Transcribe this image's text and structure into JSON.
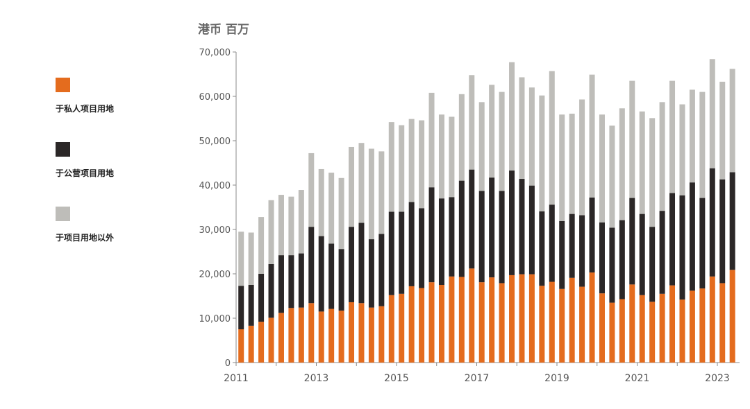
{
  "chart_data": {
    "type": "stacked_bar",
    "title": "港币 百万",
    "categories": [
      "2011",
      null,
      null,
      null,
      null,
      null,
      null,
      null,
      "2013",
      null,
      null,
      null,
      null,
      null,
      null,
      null,
      "2015",
      null,
      null,
      null,
      null,
      null,
      null,
      null,
      "2017",
      null,
      null,
      null,
      null,
      null,
      null,
      null,
      "2019",
      null,
      null,
      null,
      null,
      null,
      null,
      null,
      "2021",
      null,
      null,
      null,
      null,
      null,
      null,
      null,
      "2023",
      null
    ],
    "series": [
      {
        "name": "于私人项目用地",
        "color": "#e46c1e",
        "values": [
          7500,
          8300,
          9200,
          10100,
          11200,
          12300,
          12400,
          13400,
          11500,
          12100,
          11700,
          13600,
          13400,
          12400,
          12700,
          15200,
          15500,
          17200,
          16800,
          18100,
          17500,
          19400,
          19300,
          21200,
          18100,
          19200,
          17900,
          19700,
          19900,
          19900,
          17300,
          18200,
          16600,
          19100,
          17100,
          20300,
          15600,
          13500,
          14300,
          17600,
          15200,
          13700,
          15500,
          17400,
          14200,
          16200,
          16700,
          19400,
          17900,
          20900
        ]
      },
      {
        "name": "于公营项目用地",
        "color": "#2b2727",
        "values": [
          9800,
          9200,
          10800,
          12100,
          13000,
          11900,
          12200,
          17200,
          17000,
          14700,
          13900,
          17000,
          18100,
          15400,
          16300,
          18800,
          18500,
          19000,
          18000,
          21400,
          19500,
          17900,
          21700,
          22300,
          20600,
          22500,
          20800,
          23600,
          21500,
          20000,
          16800,
          17400,
          15300,
          14400,
          16100,
          16900,
          16000,
          16900,
          17800,
          19500,
          18300,
          16900,
          18700,
          20800,
          23500,
          24400,
          20400,
          24400,
          23400,
          22000
        ]
      },
      {
        "name": "于项目用地以外",
        "color": "#bebdb9",
        "values": [
          12200,
          11800,
          12800,
          14400,
          13600,
          13200,
          14300,
          16600,
          15100,
          16000,
          16000,
          18000,
          18000,
          20400,
          18600,
          20200,
          19500,
          18700,
          19800,
          21300,
          18900,
          18100,
          19500,
          21300,
          20000,
          20900,
          22300,
          24400,
          22900,
          22100,
          26100,
          30100,
          24000,
          22600,
          26100,
          27700,
          24300,
          23000,
          25200,
          26400,
          23100,
          24500,
          24500,
          25300,
          20500,
          20900,
          23900,
          24600,
          22000,
          23300
        ]
      }
    ],
    "ylim": [
      0,
      70000
    ],
    "yticks": [
      0,
      {
        "value": 10000,
        "label": "10,000"
      },
      {
        "value": 20000,
        "label": "20,000"
      },
      {
        "value": 30000,
        "label": "30,000"
      },
      {
        "value": 40000,
        "label": "40,000"
      },
      {
        "value": 50000,
        "label": "50,000"
      },
      {
        "value": 60000,
        "label": "60,000"
      },
      {
        "value": 70000,
        "label": "70,000"
      }
    ],
    "grid": false
  }
}
